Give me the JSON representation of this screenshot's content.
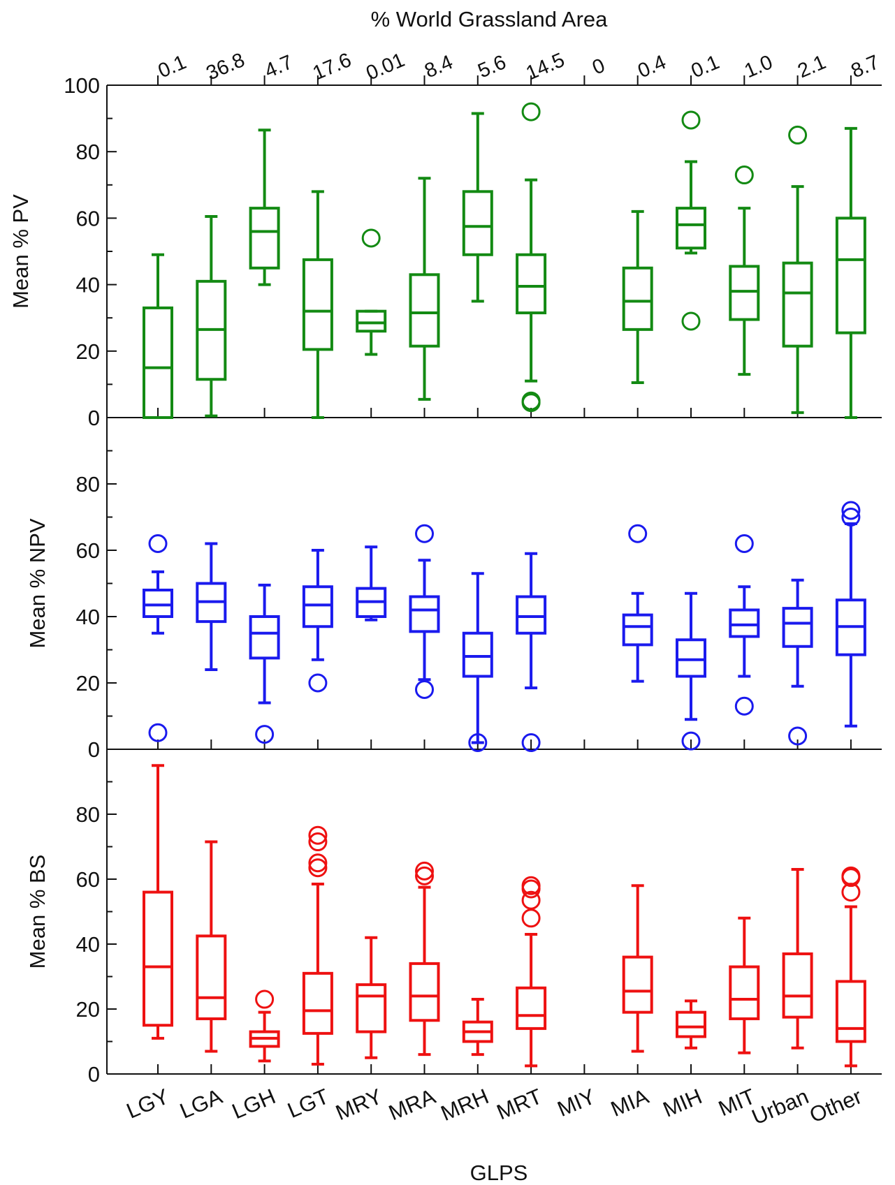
{
  "chart_data": {
    "type": "box",
    "title": "% World Grassland Area",
    "xlabel": "GLPS",
    "categories": [
      "LGY",
      "LGA",
      "LGH",
      "LGT",
      "MRY",
      "MRA",
      "MRH",
      "MRT",
      "MIY",
      "MIA",
      "MIH",
      "MIT",
      "Urban",
      "Other"
    ],
    "area_percent": [
      "0.1",
      "36.8",
      "4.7",
      "17.6",
      "0.01",
      "8.4",
      "5.6",
      "14.5",
      "0",
      "0.4",
      "0.1",
      "1.0",
      "2.1",
      "8.7"
    ],
    "panels": [
      {
        "name": "PV",
        "ylabel": "Mean % PV",
        "color": "#138a13",
        "ylim": [
          0,
          100
        ],
        "ticks": [
          "0",
          "20",
          "40",
          "60",
          "80",
          "100"
        ],
        "boxes": [
          {
            "min": 0,
            "q1": 0,
            "median": 15,
            "q3": 33,
            "max": 49,
            "outliers": []
          },
          {
            "min": 0.5,
            "q1": 11.5,
            "median": 26.5,
            "q3": 41,
            "max": 60.5,
            "outliers": []
          },
          {
            "min": 40,
            "q1": 45,
            "median": 56,
            "q3": 63,
            "max": 86.5,
            "outliers": []
          },
          {
            "min": 0,
            "q1": 20.5,
            "median": 32,
            "q3": 47.5,
            "max": 68,
            "outliers": []
          },
          {
            "min": 19,
            "q1": 26,
            "median": 28.5,
            "q3": 32,
            "max": 32,
            "outliers": [
              54
            ]
          },
          {
            "min": 5.5,
            "q1": 21.5,
            "median": 31.5,
            "q3": 43,
            "max": 72,
            "outliers": []
          },
          {
            "min": 35,
            "q1": 49,
            "median": 57.5,
            "q3": 68,
            "max": 91.5,
            "outliers": []
          },
          {
            "min": 11,
            "q1": 31.5,
            "median": 39.5,
            "q3": 49,
            "max": 71.5,
            "outliers": [
              92,
              5,
              4.5
            ]
          },
          null,
          {
            "min": 10.5,
            "q1": 26.5,
            "median": 35,
            "q3": 45,
            "max": 62,
            "outliers": []
          },
          {
            "min": 49.5,
            "q1": 51,
            "median": 58,
            "q3": 63,
            "max": 77,
            "outliers": [
              89.5,
              29
            ]
          },
          {
            "min": 13,
            "q1": 29.5,
            "median": 38,
            "q3": 45.5,
            "max": 63,
            "outliers": [
              73
            ]
          },
          {
            "min": 1.5,
            "q1": 21.5,
            "median": 37.5,
            "q3": 46.5,
            "max": 69.5,
            "outliers": [
              85
            ]
          },
          {
            "min": 0,
            "q1": 25.5,
            "median": 47.5,
            "q3": 60,
            "max": 87,
            "outliers": []
          }
        ]
      },
      {
        "name": "NPV",
        "ylabel": "Mean % NPV",
        "color": "#1a1aee",
        "ylim": [
          0,
          100
        ],
        "ticks": [
          "0",
          "20",
          "40",
          "60",
          "80"
        ],
        "boxes": [
          {
            "min": 35,
            "q1": 40,
            "median": 43.5,
            "q3": 48,
            "max": 53.5,
            "outliers": [
              62,
              5
            ]
          },
          {
            "min": 24,
            "q1": 38.5,
            "median": 44.5,
            "q3": 50,
            "max": 62,
            "outliers": []
          },
          {
            "min": 14,
            "q1": 27.5,
            "median": 35,
            "q3": 40,
            "max": 49.5,
            "outliers": [
              4.5
            ]
          },
          {
            "min": 27,
            "q1": 37,
            "median": 43.5,
            "q3": 49,
            "max": 60,
            "outliers": [
              20
            ]
          },
          {
            "min": 39,
            "q1": 40,
            "median": 44.5,
            "q3": 48.5,
            "max": 61,
            "outliers": []
          },
          {
            "min": 21,
            "q1": 35.5,
            "median": 42,
            "q3": 46,
            "max": 57,
            "outliers": [
              65,
              18
            ]
          },
          {
            "min": 2,
            "q1": 22,
            "median": 28,
            "q3": 35,
            "max": 53,
            "outliers": [
              2
            ]
          },
          {
            "min": 18.5,
            "q1": 35,
            "median": 40,
            "q3": 46,
            "max": 59,
            "outliers": [
              2
            ]
          },
          null,
          {
            "min": 20.5,
            "q1": 31.5,
            "median": 37,
            "q3": 40.5,
            "max": 47,
            "outliers": [
              65
            ]
          },
          {
            "min": 9,
            "q1": 22,
            "median": 27,
            "q3": 33,
            "max": 47,
            "outliers": [
              2.5
            ]
          },
          {
            "min": 22,
            "q1": 34,
            "median": 37.5,
            "q3": 42,
            "max": 49,
            "outliers": [
              62,
              13
            ]
          },
          {
            "min": 19,
            "q1": 31,
            "median": 38,
            "q3": 42.5,
            "max": 51,
            "outliers": [
              4
            ]
          },
          {
            "min": 7,
            "q1": 28.5,
            "median": 37,
            "q3": 45,
            "max": 68,
            "outliers": [
              72,
              70
            ]
          }
        ]
      },
      {
        "name": "BS",
        "ylabel": "Mean % BS",
        "color": "#ee1111",
        "ylim": [
          0,
          100
        ],
        "ticks": [
          "0",
          "20",
          "40",
          "60",
          "80"
        ],
        "boxes": [
          {
            "min": 11,
            "q1": 15,
            "median": 33,
            "q3": 56,
            "max": 95,
            "outliers": []
          },
          {
            "min": 7,
            "q1": 17,
            "median": 23.5,
            "q3": 42.5,
            "max": 71.5,
            "outliers": []
          },
          {
            "min": 4,
            "q1": 8.5,
            "median": 11,
            "q3": 13,
            "max": 19,
            "outliers": [
              23
            ]
          },
          {
            "min": 3,
            "q1": 12.5,
            "median": 19.5,
            "q3": 31,
            "max": 58.5,
            "outliers": [
              73.5,
              71.5,
              65,
              63.5
            ]
          },
          {
            "min": 5,
            "q1": 13,
            "median": 24,
            "q3": 27.5,
            "max": 42,
            "outliers": []
          },
          {
            "min": 6,
            "q1": 16.5,
            "median": 24,
            "q3": 34,
            "max": 57.5,
            "outliers": [
              62.5,
              61
            ]
          },
          {
            "min": 6,
            "q1": 10,
            "median": 13,
            "q3": 16,
            "max": 23,
            "outliers": []
          },
          {
            "min": 2.5,
            "q1": 14,
            "median": 18,
            "q3": 26.5,
            "max": 43,
            "outliers": [
              58,
              57,
              53.5,
              48
            ]
          },
          null,
          {
            "min": 7,
            "q1": 19,
            "median": 25.5,
            "q3": 36,
            "max": 58,
            "outliers": []
          },
          {
            "min": 8,
            "q1": 11.5,
            "median": 14.5,
            "q3": 19,
            "max": 22.5,
            "outliers": []
          },
          {
            "min": 6.5,
            "q1": 17,
            "median": 23,
            "q3": 33,
            "max": 48,
            "outliers": []
          },
          {
            "min": 8,
            "q1": 17.5,
            "median": 24,
            "q3": 37,
            "max": 63,
            "outliers": []
          },
          {
            "min": 2.5,
            "q1": 10,
            "median": 14,
            "q3": 28.5,
            "max": 51.5,
            "outliers": [
              61,
              60.5,
              56
            ]
          }
        ]
      }
    ]
  }
}
